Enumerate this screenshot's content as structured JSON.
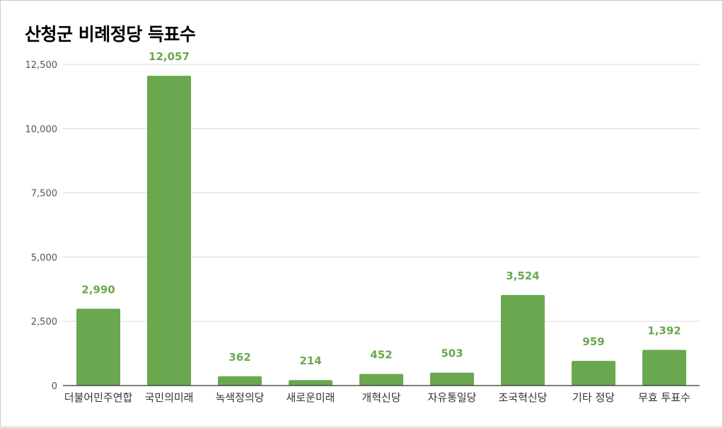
{
  "chart_data": {
    "type": "bar",
    "title": "산청군 비례정당 득표수",
    "categories": [
      "더불어민주연합",
      "국민의미래",
      "녹색정의당",
      "새로운미래",
      "개혁신당",
      "자유통일당",
      "조국혁신당",
      "기타 정당",
      "무효 투표수"
    ],
    "values": [
      2990,
      12057,
      362,
      214,
      452,
      503,
      3524,
      959,
      1392
    ],
    "value_labels": [
      "2,990",
      "12,057",
      "362",
      "214",
      "452",
      "503",
      "3,524",
      "959",
      "1,392"
    ],
    "yticks": [
      0,
      2500,
      5000,
      7500,
      10000,
      12500
    ],
    "ytick_labels": [
      "0",
      "2,500",
      "5,000",
      "7,500",
      "10,000",
      "12,500"
    ],
    "ylim": [
      0,
      12500
    ],
    "grid": true,
    "legend": "none",
    "colors": {
      "bar": "#6aa84f",
      "label": "#6aa84f",
      "grid": "#d9d9d9",
      "axis": "#333333"
    }
  }
}
